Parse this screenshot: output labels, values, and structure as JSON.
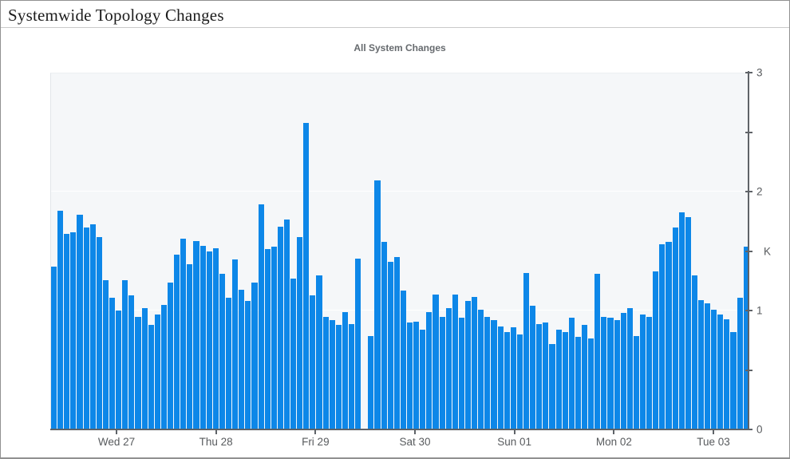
{
  "page": {
    "title": "Systemwide Topology Changes"
  },
  "chart": {
    "title": "All System Changes",
    "colors": {
      "bar": "#0d87e8",
      "axis": "#5f6368",
      "tick_label": "#585b5e",
      "plot_background": "#f5f7f9",
      "gridline": "#ffffff",
      "chart_title": "#666a6e"
    }
  },
  "chart_data": {
    "type": "bar",
    "title": "All System Changes",
    "xlabel": "",
    "ylabel": "",
    "y_axis": {
      "position": "right",
      "min": 0,
      "max": 3,
      "unit": "K",
      "major_tick_labels": [
        "0",
        "1",
        "2",
        "3"
      ],
      "minor_tick_step": 0.5
    },
    "x_axis": {
      "tick_labels": [
        "Wed 27",
        "Thu 28",
        "Fri 29",
        "Sat 30",
        "Sun 01",
        "Mon 02",
        "Tue 03"
      ]
    },
    "legend": "none",
    "grid": "horizontal",
    "values_unit": "K",
    "values_k": [
      1.37,
      1.84,
      1.65,
      1.66,
      1.81,
      1.7,
      1.73,
      1.62,
      1.26,
      1.11,
      1.0,
      1.26,
      1.13,
      0.95,
      1.02,
      0.88,
      0.97,
      1.05,
      1.24,
      1.47,
      1.61,
      1.39,
      1.59,
      1.55,
      1.5,
      1.53,
      1.31,
      1.11,
      1.43,
      1.18,
      1.08,
      1.24,
      1.9,
      1.52,
      1.54,
      1.71,
      1.77,
      1.27,
      1.62,
      2.58,
      1.13,
      1.3,
      0.95,
      0.92,
      0.88,
      0.99,
      0.89,
      1.44,
      0,
      0.79,
      2.1,
      1.58,
      1.41,
      1.45,
      1.17,
      0.9,
      0.91,
      0.84,
      0.99,
      1.14,
      0.95,
      1.02,
      1.14,
      0.94,
      1.08,
      1.12,
      1.01,
      0.95,
      0.92,
      0.87,
      0.82,
      0.86,
      0.8,
      1.32,
      1.04,
      0.89,
      0.9,
      0.72,
      0.84,
      0.82,
      0.94,
      0.78,
      0.88,
      0.77,
      1.31,
      0.95,
      0.94,
      0.92,
      0.98,
      1.02,
      0.79,
      0.97,
      0.95,
      1.33,
      1.56,
      1.58,
      1.7,
      1.83,
      1.79,
      1.3,
      1.09,
      1.06,
      1.01,
      0.97,
      0.93,
      0.82,
      1.11,
      1.54
    ]
  }
}
